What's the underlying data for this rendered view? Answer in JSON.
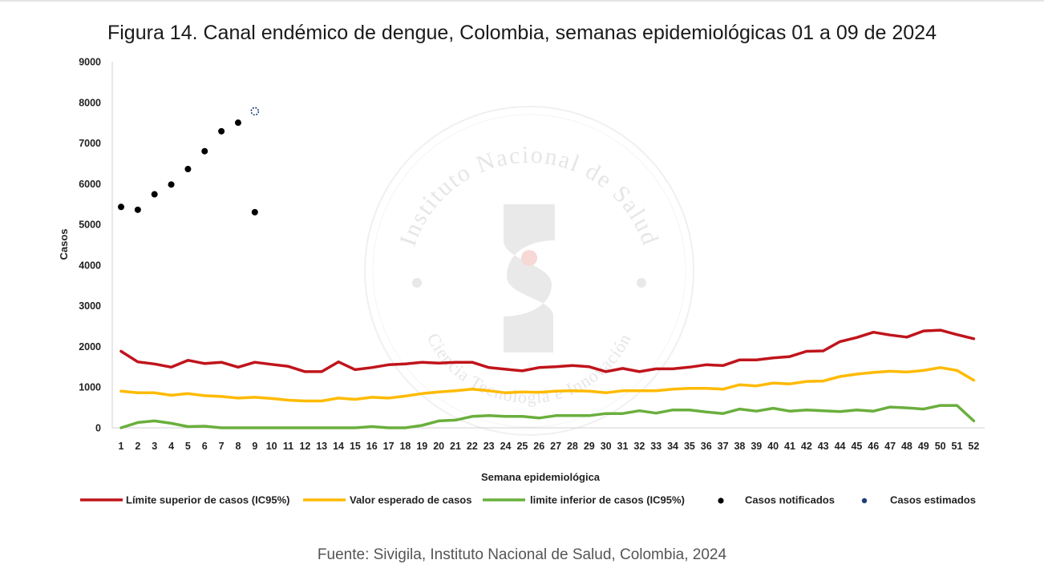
{
  "title": "Figura 14.  Canal endémico de dengue, Colombia, semanas epidemiológicas 01 a 09 de 2024",
  "source": "Fuente: Sivigila, Instituto Nacional de Salud, Colombia, 2024",
  "watermark": {
    "outer_text": "Instituto Nacional de Salud",
    "inner_text": "Ciencia Tecnología e Innovación"
  },
  "chart_data": {
    "type": "line",
    "xlabel": "Semana epidemiológica",
    "ylabel": "Casos",
    "ylim": [
      0,
      9000
    ],
    "yticks": [
      0,
      1000,
      2000,
      3000,
      4000,
      5000,
      6000,
      7000,
      8000,
      9000
    ],
    "x": [
      1,
      2,
      3,
      4,
      5,
      6,
      7,
      8,
      9,
      10,
      11,
      12,
      13,
      14,
      15,
      16,
      17,
      18,
      19,
      20,
      21,
      22,
      23,
      24,
      25,
      26,
      27,
      28,
      29,
      30,
      31,
      32,
      33,
      34,
      35,
      36,
      37,
      38,
      39,
      40,
      41,
      42,
      43,
      44,
      45,
      46,
      47,
      48,
      49,
      50,
      51,
      52
    ],
    "grid": false,
    "legend_position": "bottom",
    "series": [
      {
        "name": "Límite superior de casos (IC95%)",
        "kind": "line",
        "color": "#c0141b",
        "values": [
          1880,
          1620,
          1570,
          1490,
          1660,
          1580,
          1610,
          1490,
          1610,
          1560,
          1510,
          1380,
          1380,
          1620,
          1430,
          1480,
          1550,
          1570,
          1610,
          1590,
          1610,
          1610,
          1480,
          1440,
          1400,
          1480,
          1500,
          1530,
          1500,
          1380,
          1460,
          1380,
          1450,
          1450,
          1490,
          1550,
          1530,
          1670,
          1670,
          1720,
          1750,
          1880,
          1890,
          2120,
          2220,
          2350,
          2280,
          2230,
          2380,
          2400,
          2290,
          2190
        ]
      },
      {
        "name": "Valor esperado de casos",
        "kind": "line",
        "color": "#ffba00",
        "values": [
          900,
          860,
          860,
          800,
          840,
          790,
          770,
          730,
          750,
          720,
          680,
          660,
          660,
          730,
          700,
          750,
          730,
          780,
          840,
          880,
          910,
          950,
          910,
          860,
          880,
          870,
          900,
          910,
          900,
          860,
          910,
          910,
          910,
          950,
          970,
          970,
          950,
          1060,
          1030,
          1100,
          1080,
          1140,
          1150,
          1260,
          1320,
          1360,
          1390,
          1370,
          1410,
          1480,
          1410,
          1170
        ]
      },
      {
        "name": "limite inferior de casos (IC95%)",
        "kind": "line",
        "color": "#6aaf3d",
        "values": [
          -50,
          130,
          170,
          110,
          30,
          40,
          -40,
          -50,
          -60,
          -150,
          -150,
          -30,
          -30,
          -150,
          -20,
          30,
          -20,
          -20,
          60,
          170,
          190,
          280,
          300,
          280,
          280,
          240,
          300,
          300,
          300,
          350,
          350,
          420,
          360,
          440,
          440,
          390,
          350,
          460,
          410,
          480,
          410,
          440,
          420,
          400,
          440,
          410,
          510,
          490,
          460,
          550,
          550,
          170
        ]
      },
      {
        "name": "Casos notificados",
        "kind": "scatter",
        "color": "#000000",
        "x": [
          1,
          2,
          3,
          4,
          5,
          6,
          7,
          8,
          9
        ],
        "values": [
          5430,
          5360,
          5740,
          5980,
          6360,
          6800,
          7290,
          7500,
          5300
        ]
      },
      {
        "name": "Casos estimados",
        "kind": "scatter",
        "color": "#1f3d7a",
        "x": [
          9
        ],
        "values": [
          7780
        ]
      }
    ]
  }
}
